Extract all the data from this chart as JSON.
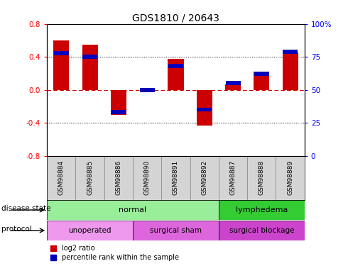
{
  "title": "GDS1810 / 20643",
  "samples": [
    "GSM98884",
    "GSM98885",
    "GSM98886",
    "GSM98890",
    "GSM98891",
    "GSM98892",
    "GSM98887",
    "GSM98888",
    "GSM98889"
  ],
  "log2_ratio": [
    0.6,
    0.55,
    -0.3,
    0.0,
    0.38,
    -0.43,
    0.07,
    0.22,
    0.45
  ],
  "percentile_rank": [
    78,
    75,
    33,
    50,
    68,
    35,
    55,
    62,
    79
  ],
  "bar_width": 0.55,
  "ylim": [
    -0.8,
    0.8
  ],
  "yticks_left": [
    -0.8,
    -0.4,
    0.0,
    0.4,
    0.8
  ],
  "yticks_right": [
    0,
    25,
    50,
    75,
    100
  ],
  "red_color": "#cc0000",
  "blue_color": "#0000bb",
  "zero_line_color": "#cc0000",
  "bg_color": "#ffffff",
  "tick_bg_color": "#cccccc",
  "ds_normal_color": "#99ee99",
  "ds_lymph_color": "#33cc33",
  "prot_unop_color": "#ee99ee",
  "prot_sham_color": "#dd66dd",
  "prot_block_color": "#cc44cc",
  "legend1": "log2 ratio",
  "legend2": "percentile rank within the sample",
  "disease_label": "disease state",
  "protocol_label": "protocol"
}
